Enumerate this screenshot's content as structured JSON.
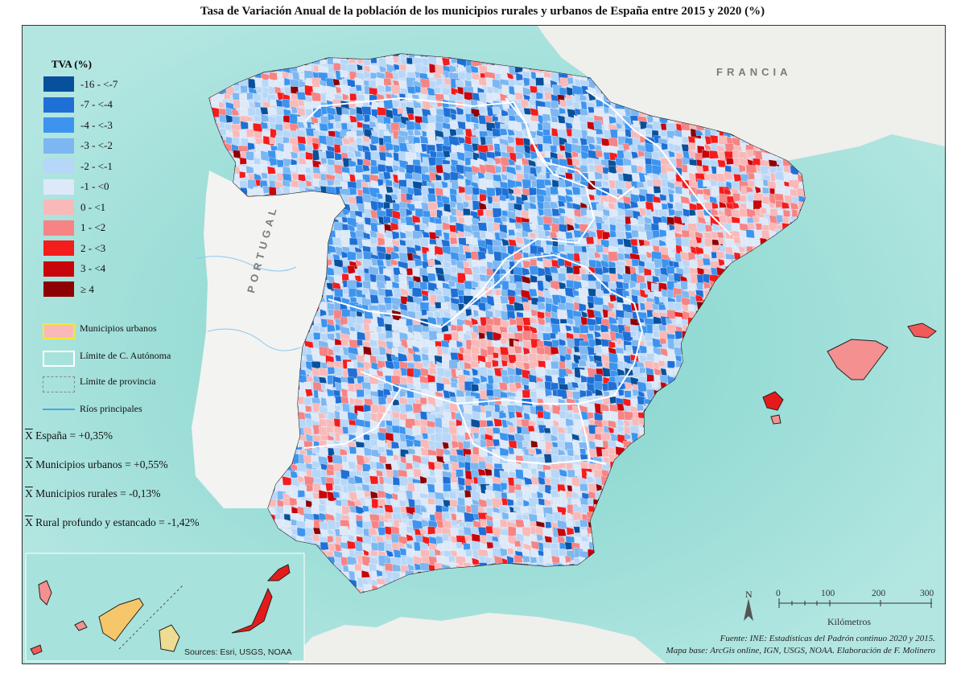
{
  "title": "Tasa de Variación Anual de la población de los municipios rurales y urbanos de España entre 2015 y 2020 (%)",
  "legend": {
    "title": "TVA (%)",
    "classes": [
      {
        "label": "-16 - <-7",
        "color": "#08509b"
      },
      {
        "label": "-7 - <-4",
        "color": "#1f70d6"
      },
      {
        "label": "-4 - <-3",
        "color": "#3d94ee"
      },
      {
        "label": "-3 - <-2",
        "color": "#7cb7f2"
      },
      {
        "label": "-2 - <-1",
        "color": "#b7d7f8"
      },
      {
        "label": "-1 - <0",
        "color": "#dde9f8"
      },
      {
        "label": "0 - <1",
        "color": "#f9b9b9"
      },
      {
        "label": "1 - <2",
        "color": "#f68484"
      },
      {
        "label": "2 - <3",
        "color": "#f51c1c"
      },
      {
        "label": "3 - <4",
        "color": "#c8050b"
      },
      {
        "label": "≥ 4",
        "color": "#8d0003"
      }
    ],
    "urban_label": "Municipios urbanos",
    "ca_label": "Límite de C. Autónoma",
    "prov_label": "Límite de provincia",
    "rivers_label": "Ríos principales"
  },
  "stats": [
    {
      "symbol": "X",
      "text": " España = +0,35%"
    },
    {
      "symbol": "X",
      "text": " Municipios urbanos = +0,55%"
    },
    {
      "symbol": "X",
      "text": " Municipios rurales =  -0,13%"
    },
    {
      "symbol": "X",
      "text": " Rural profundo y estancado = -1,42%"
    }
  ],
  "countries": {
    "france": "FRANCIA",
    "portugal": "PORTUGAL"
  },
  "scale": {
    "ticks": [
      "0",
      "100",
      "200",
      "300"
    ],
    "unit": "Kilómetros"
  },
  "north_label": "N",
  "sources": "Sources: Esri, USGS, NOAA",
  "credit": {
    "line1": "Fuente: INE: Estadísticas del Padrón continuo 2020 y 2015.",
    "line2": "Mapa base: ArcGis online, IGN, USGS, NOAA. Elaboración de F. Molinero"
  },
  "colors": {
    "sea": "#9fdcd6",
    "land": "#f4f4f2",
    "ca_border": "#ffffff",
    "urban_outline": "#f2e83a"
  }
}
